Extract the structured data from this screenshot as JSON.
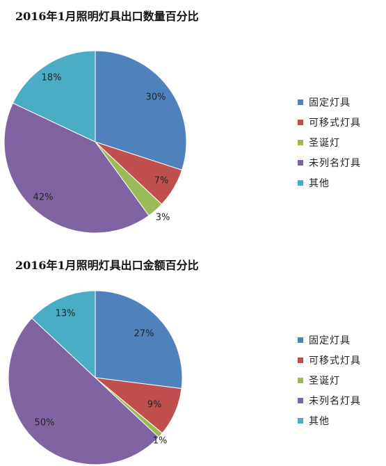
{
  "chart_data": [
    {
      "type": "pie",
      "title": "2016年1月照明灯具出口数量百分比",
      "categories": [
        "固定灯具",
        "可移式灯具",
        "圣诞灯",
        "未列名灯具",
        "其他"
      ],
      "values": [
        30,
        7,
        3,
        42,
        18
      ],
      "labels": [
        "30%",
        "7%",
        "3%",
        "42%",
        "18%"
      ],
      "colors": [
        "#4F81BD",
        "#C0504D",
        "#9BBB59",
        "#8064A2",
        "#4BACC6"
      ],
      "legend_position": "right"
    },
    {
      "type": "pie",
      "title": "2016年1月照明灯具出口金额百分比",
      "categories": [
        "固定灯具",
        "可移式灯具",
        "圣诞灯",
        "未列名灯具",
        "其他"
      ],
      "values": [
        27,
        9,
        1,
        50,
        13
      ],
      "labels": [
        "27%",
        "9%",
        "1%",
        "50%",
        "13%"
      ],
      "colors": [
        "#4F81BD",
        "#C0504D",
        "#9BBB59",
        "#8064A2",
        "#4BACC6"
      ],
      "legend_position": "right"
    }
  ]
}
